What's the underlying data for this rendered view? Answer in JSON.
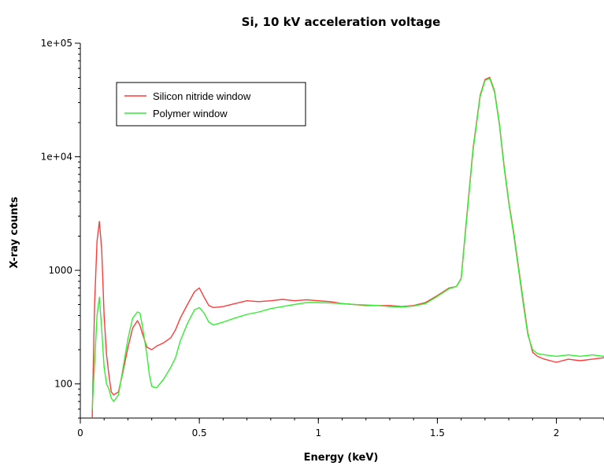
{
  "chart_data": {
    "type": "line",
    "title": "Si, 10 kV acceleration voltage",
    "xlabel": "Energy (keV)",
    "ylabel": "X-ray counts",
    "xlim": [
      0,
      2.2
    ],
    "ylim": [
      50,
      100000
    ],
    "yscale": "log",
    "x_ticks": [
      0,
      0.5,
      1,
      1.5,
      2
    ],
    "x_tick_labels": [
      "0",
      "0.5",
      "1",
      "1.5",
      "2"
    ],
    "y_ticks": [
      100,
      1000,
      10000,
      100000
    ],
    "y_tick_labels": [
      "100",
      "1000",
      "1e+04",
      "1e+05"
    ],
    "grid": false,
    "legend_position": "top-left",
    "series": [
      {
        "name": "Silicon nitride window",
        "color": "#ff3b3b",
        "x": [
          0.05,
          0.06,
          0.07,
          0.08,
          0.09,
          0.1,
          0.11,
          0.12,
          0.13,
          0.14,
          0.16,
          0.18,
          0.2,
          0.22,
          0.24,
          0.25,
          0.26,
          0.28,
          0.3,
          0.32,
          0.35,
          0.38,
          0.4,
          0.42,
          0.45,
          0.48,
          0.5,
          0.52,
          0.54,
          0.56,
          0.6,
          0.65,
          0.7,
          0.75,
          0.8,
          0.85,
          0.9,
          0.95,
          1.0,
          1.05,
          1.1,
          1.15,
          1.2,
          1.25,
          1.3,
          1.35,
          1.4,
          1.45,
          1.5,
          1.55,
          1.58,
          1.6,
          1.62,
          1.65,
          1.68,
          1.7,
          1.72,
          1.74,
          1.76,
          1.78,
          1.8,
          1.82,
          1.84,
          1.86,
          1.88,
          1.9,
          1.92,
          1.95,
          2.0,
          2.05,
          2.1,
          2.15,
          2.2
        ],
        "y": [
          50,
          500,
          1800,
          2700,
          1500,
          400,
          180,
          120,
          85,
          80,
          85,
          130,
          210,
          310,
          360,
          330,
          280,
          210,
          200,
          215,
          230,
          255,
          300,
          380,
          500,
          650,
          700,
          580,
          490,
          470,
          480,
          510,
          540,
          530,
          540,
          555,
          540,
          550,
          540,
          530,
          510,
          500,
          490,
          490,
          490,
          480,
          490,
          520,
          600,
          700,
          720,
          850,
          2500,
          12000,
          35000,
          48000,
          50000,
          38000,
          20000,
          8500,
          4000,
          2200,
          1100,
          550,
          280,
          190,
          175,
          165,
          155,
          165,
          160,
          165,
          170
        ]
      },
      {
        "name": "Polymer window",
        "color": "#33ee33",
        "x": [
          0.05,
          0.06,
          0.07,
          0.08,
          0.09,
          0.1,
          0.11,
          0.12,
          0.13,
          0.14,
          0.16,
          0.18,
          0.2,
          0.22,
          0.24,
          0.25,
          0.26,
          0.28,
          0.29,
          0.3,
          0.32,
          0.35,
          0.38,
          0.4,
          0.42,
          0.45,
          0.48,
          0.5,
          0.52,
          0.54,
          0.56,
          0.6,
          0.65,
          0.7,
          0.75,
          0.8,
          0.85,
          0.9,
          0.95,
          1.0,
          1.05,
          1.1,
          1.15,
          1.2,
          1.25,
          1.3,
          1.35,
          1.4,
          1.45,
          1.5,
          1.55,
          1.58,
          1.6,
          1.62,
          1.65,
          1.68,
          1.7,
          1.72,
          1.74,
          1.76,
          1.78,
          1.8,
          1.82,
          1.84,
          1.86,
          1.88,
          1.9,
          1.92,
          1.95,
          2.0,
          2.05,
          2.1,
          2.15,
          2.2
        ],
        "y": [
          60,
          150,
          400,
          580,
          300,
          140,
          100,
          90,
          75,
          70,
          80,
          140,
          250,
          380,
          430,
          420,
          330,
          180,
          120,
          95,
          92,
          110,
          140,
          170,
          240,
          340,
          450,
          470,
          420,
          350,
          330,
          350,
          380,
          410,
          430,
          460,
          480,
          500,
          520,
          520,
          515,
          510,
          500,
          495,
          490,
          480,
          475,
          485,
          510,
          590,
          690,
          720,
          840,
          2400,
          11500,
          34000,
          47000,
          49000,
          37000,
          19500,
          8200,
          3900,
          2100,
          1050,
          520,
          270,
          200,
          185,
          180,
          175,
          180,
          175,
          180,
          175
        ]
      }
    ]
  }
}
